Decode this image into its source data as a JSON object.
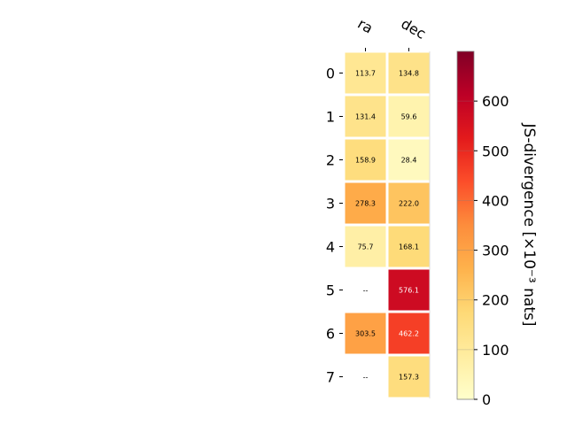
{
  "chart_data": {
    "type": "heatmap",
    "columns": [
      "ra",
      "dec"
    ],
    "rows": [
      "0",
      "1",
      "2",
      "3",
      "4",
      "5",
      "6",
      "7"
    ],
    "values": [
      [
        113.7,
        134.8
      ],
      [
        131.4,
        59.6
      ],
      [
        158.9,
        28.4
      ],
      [
        278.3,
        222.0
      ],
      [
        75.7,
        168.1
      ],
      [
        null,
        576.1
      ],
      [
        303.5,
        462.2
      ],
      [
        null,
        157.3
      ]
    ],
    "cell_labels": [
      [
        "113.7",
        "134.8"
      ],
      [
        "131.4",
        "59.6"
      ],
      [
        "158.9",
        "28.4"
      ],
      [
        "278.3",
        "222.0"
      ],
      [
        "75.7",
        "168.1"
      ],
      [
        "--",
        "576.1"
      ],
      [
        "303.5",
        "462.2"
      ],
      [
        "--",
        "157.3"
      ]
    ],
    "colorbar": {
      "label": "JS-divergence [×10⁻³ nats]",
      "ticks": [
        0,
        100,
        200,
        300,
        400,
        500,
        600
      ],
      "tick_labels": [
        "0",
        "100",
        "200",
        "300",
        "400",
        "500",
        "600"
      ],
      "range": [
        0,
        700
      ],
      "colormap": "YlOrRd"
    }
  }
}
